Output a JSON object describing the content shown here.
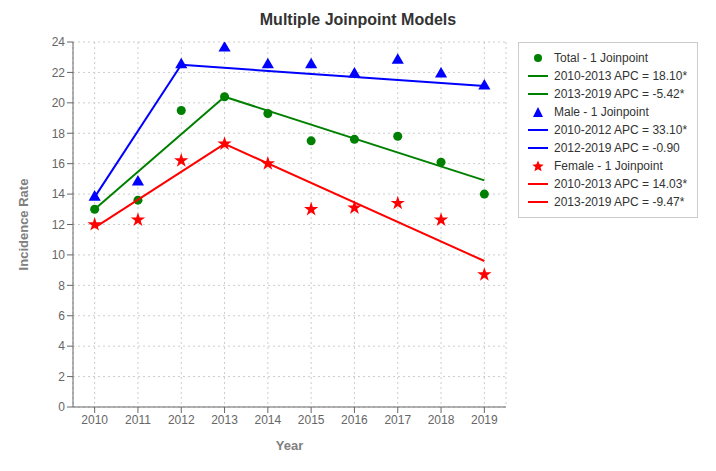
{
  "chart_data": {
    "type": "scatter",
    "title": "Multiple Joinpoint Models",
    "x_label": "Year",
    "y_label": "Incidence Rate",
    "xlim": [
      2009.5,
      2019.5
    ],
    "xticks": [
      2010,
      2011,
      2012,
      2013,
      2014,
      2015,
      2016,
      2017,
      2018,
      2019
    ],
    "ylim": [
      0,
      24
    ],
    "yticks": [
      0,
      2,
      4,
      6,
      8,
      10,
      12,
      14,
      16,
      18,
      20,
      22,
      24
    ],
    "grid": true,
    "legend": "right",
    "series": [
      {
        "name": "Total - 1 Joinpoint",
        "type": "scatter",
        "marker": "circle",
        "color": "#008000",
        "x": [
          2010,
          2011,
          2012,
          2013,
          2014,
          2015,
          2016,
          2017,
          2018,
          2019
        ],
        "values": [
          13.0,
          13.6,
          19.5,
          20.4,
          19.3,
          17.5,
          17.6,
          17.8,
          16.1,
          14.0
        ]
      },
      {
        "name": "2010-2013 APC = 18.10*",
        "type": "line",
        "color": "#008000",
        "x": [
          2010,
          2013
        ],
        "values": [
          13.0,
          20.4
        ]
      },
      {
        "name": "2013-2019 APC = -5.42*",
        "type": "line",
        "color": "#008000",
        "x": [
          2013,
          2019
        ],
        "values": [
          20.4,
          14.9
        ]
      },
      {
        "name": "Male - 1 Joinpoint",
        "type": "scatter",
        "marker": "triangle",
        "color": "#0000FF",
        "x": [
          2010,
          2011,
          2012,
          2013,
          2014,
          2015,
          2016,
          2017,
          2018,
          2019
        ],
        "values": [
          13.8,
          14.8,
          22.5,
          23.6,
          22.5,
          22.5,
          21.9,
          22.8,
          21.9,
          21.1
        ]
      },
      {
        "name": "2010-2012 APC = 33.10*",
        "type": "line",
        "color": "#0000FF",
        "x": [
          2010,
          2012
        ],
        "values": [
          13.8,
          22.5
        ]
      },
      {
        "name": "2012-2019 APC = -0.90",
        "type": "line",
        "color": "#0000FF",
        "x": [
          2012,
          2019
        ],
        "values": [
          22.5,
          21.1
        ]
      },
      {
        "name": "Female - 1 Joinpoint",
        "type": "scatter",
        "marker": "star",
        "color": "#FF0000",
        "x": [
          2010,
          2011,
          2012,
          2013,
          2014,
          2015,
          2016,
          2017,
          2018,
          2019
        ],
        "values": [
          12.0,
          12.3,
          16.2,
          17.3,
          16.0,
          13.0,
          13.1,
          13.4,
          12.3,
          8.7
        ]
      },
      {
        "name": "2010-2013 APC = 14.03*",
        "type": "line",
        "color": "#FF0000",
        "x": [
          2010,
          2013
        ],
        "values": [
          11.8,
          17.3
        ]
      },
      {
        "name": "2013-2019 APC = -9.47*",
        "type": "line",
        "color": "#FF0000",
        "x": [
          2013,
          2019
        ],
        "values": [
          17.3,
          9.6
        ]
      }
    ]
  }
}
